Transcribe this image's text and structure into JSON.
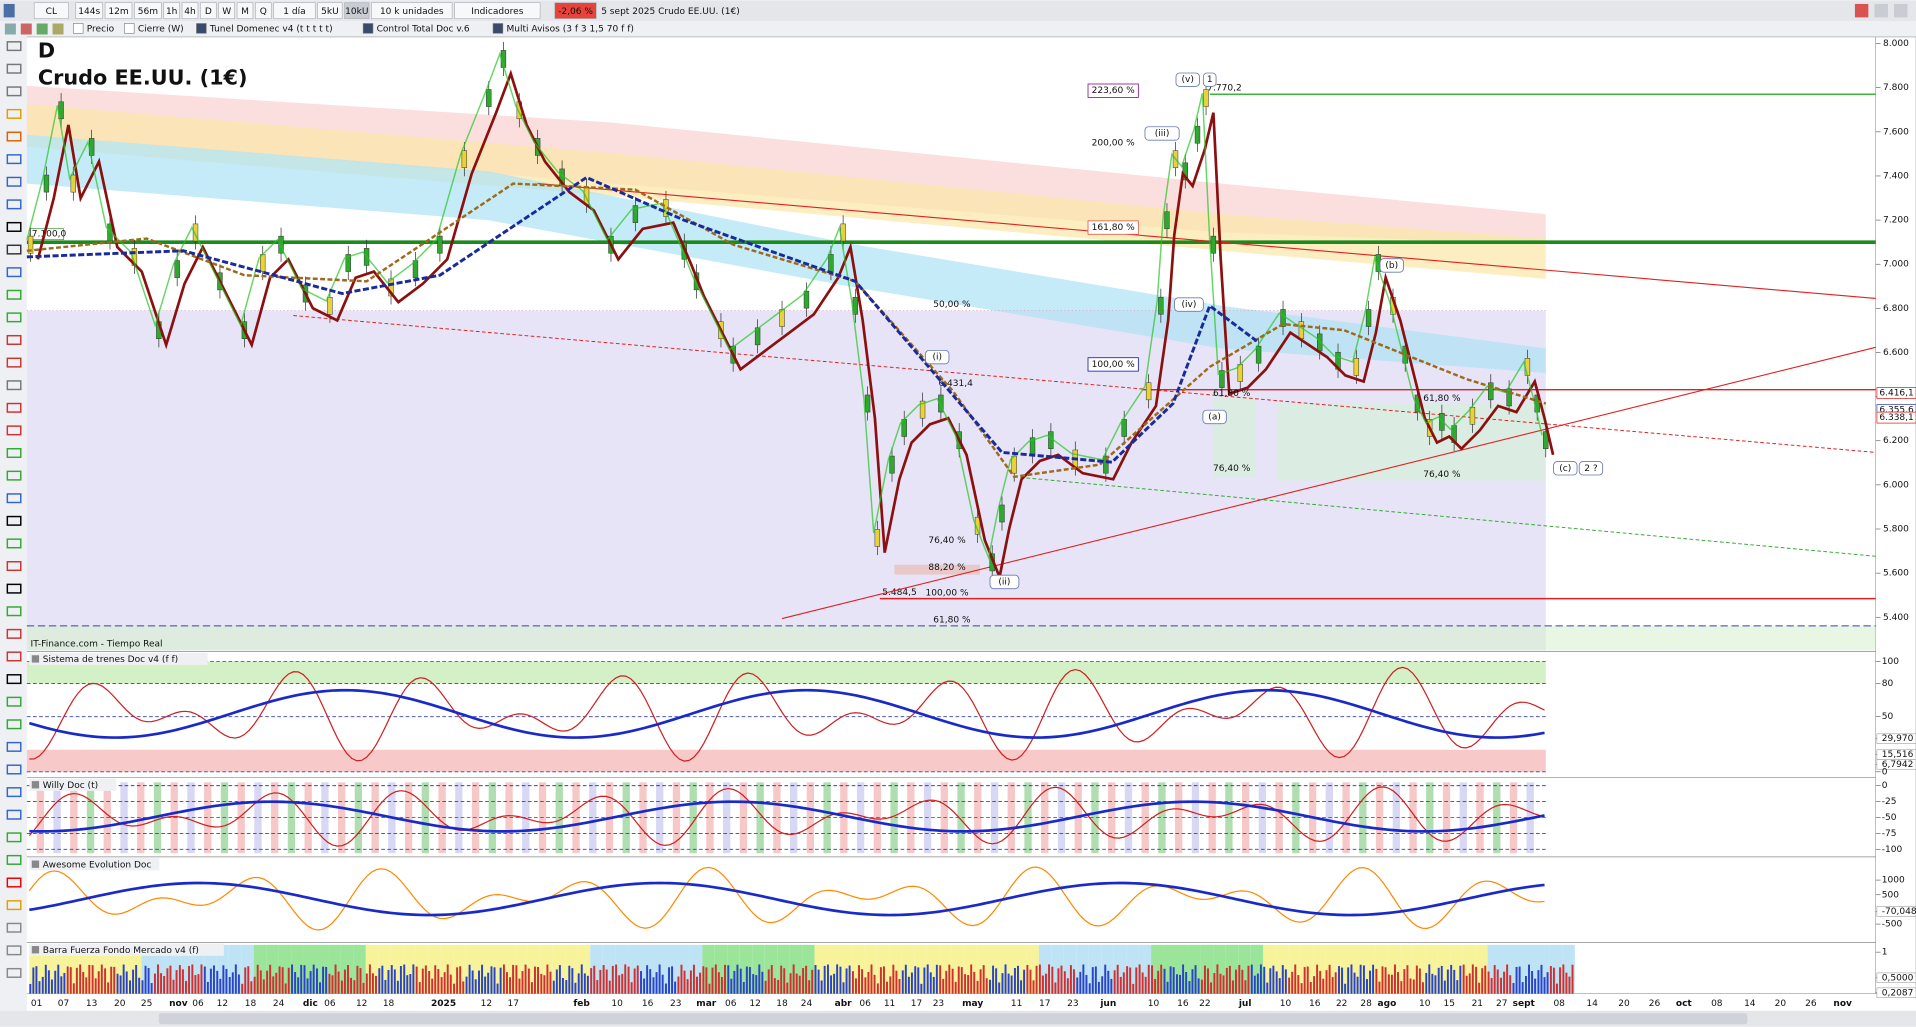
{
  "toolbar": {
    "symbol": "CL",
    "buttons": [
      "144s",
      "12m",
      "56m",
      "1h",
      "4h",
      "D",
      "W",
      "M",
      "Q"
    ],
    "period": "1 día",
    "units": [
      "5kU",
      "10kU"
    ],
    "unit_mode": "10 k unidades",
    "indicators": "Indicadores",
    "change": "-2,06 %",
    "info": "5 sept 2025 Crudo EE.UU. (1€)"
  },
  "indicator_tabs": [
    "Precio",
    "Cierre (W)",
    "Tunel Domenec v4 (t t t t t)",
    "Control Total Doc v.6",
    "Multi Avisos (3 f 3 1,5 70 f f)"
  ],
  "chart": {
    "timeframe": "D",
    "title": "Crudo EE.UU. (1€)",
    "source": "IT-Finance.com - Tiempo Real",
    "ylim": [
      5.25,
      8.03
    ],
    "yticks": [
      {
        "value": 8.0,
        "label": "8.000"
      },
      {
        "value": 7.8,
        "label": "7.800"
      },
      {
        "value": 7.6,
        "label": "7.600"
      },
      {
        "value": 7.4,
        "label": "7.400"
      },
      {
        "value": 7.2,
        "label": "7.200"
      },
      {
        "value": 7.0,
        "label": "7.000"
      },
      {
        "value": 6.8,
        "label": "6.800"
      },
      {
        "value": 6.6,
        "label": "6.600"
      },
      {
        "value": 6.4,
        "label": "6.400"
      },
      {
        "value": 6.2,
        "label": "6.200"
      },
      {
        "value": 6.0,
        "label": "6.000"
      },
      {
        "value": 5.8,
        "label": "5.800"
      },
      {
        "value": 5.6,
        "label": "5.600"
      },
      {
        "value": 5.4,
        "label": "5.400"
      }
    ],
    "levels": [
      {
        "value": 7.1,
        "label": "7.100,0"
      },
      {
        "value": 7.7702,
        "label": "7.770,2"
      },
      {
        "value": 6.4314,
        "label": "6.431,4"
      },
      {
        "value": 5.4845,
        "label": "5.484,5"
      }
    ],
    "price_tags": [
      {
        "value": 6.4161,
        "label": "6.416,1"
      },
      {
        "value": 6.3556,
        "label": "6.355,6"
      },
      {
        "value": 6.3381,
        "label": "6.338,1"
      }
    ],
    "annotations": [
      "223,60 %",
      "200,00 %",
      "161,80 %",
      "50,00 %",
      "100,00 %",
      "61,80 %",
      "61,80 %",
      "76,40 %",
      "76,40 %",
      "76,40 %",
      "88,20 %",
      "100,00 %",
      "61,80 %",
      "(v)",
      "1",
      "(iii)",
      "(iv)",
      "(i)",
      "(ii)",
      "(a)",
      "(b)",
      "(c)",
      "2 ?"
    ],
    "x_labels": [
      "01",
      "07",
      "13",
      "20",
      "25",
      "nov",
      "06",
      "12",
      "18",
      "24",
      "dic",
      "06",
      "12",
      "18",
      "2025",
      "12",
      "17",
      "feb",
      "10",
      "16",
      "23",
      "mar",
      "06",
      "12",
      "18",
      "24",
      "abr",
      "06",
      "11",
      "17",
      "23",
      "may",
      "11",
      "17",
      "23",
      "jun",
      "10",
      "16",
      "22",
      "jul",
      "10",
      "16",
      "22",
      "28",
      "ago",
      "10",
      "15",
      "21",
      "27",
      "sept",
      "08",
      "14",
      "20",
      "26",
      "oct",
      "08",
      "14",
      "20",
      "26",
      "nov"
    ]
  },
  "panels": [
    {
      "title": "Sistema de trenes Doc v4 (f f)",
      "ylim": [
        -4,
        109
      ],
      "ticks": [
        100,
        80,
        50,
        {
          "value": 29.97,
          "label": "29,970"
        },
        {
          "value": 15.516,
          "label": "15,516"
        },
        {
          "value": 6.7942,
          "label": "6,7942"
        },
        0
      ]
    },
    {
      "title": "Willy Doc (t)",
      "ylim": [
        -110,
        13
      ],
      "ticks": [
        0,
        -25,
        -50,
        -75,
        -100
      ]
    },
    {
      "title": "Awesome Evolution Doc",
      "ylim": [
        -1083,
        1792
      ],
      "ticks": [
        1000,
        500,
        {
          "value": -70.048,
          "label": "-70,048"
        },
        -500
      ]
    },
    {
      "title": "Barra Fuerza Fondo Mercado v4 (f)",
      "ylim": [
        0.19,
        1.19
      ],
      "ticks": [
        1,
        {
          "value": 0.5,
          "label": "0,5000"
        },
        {
          "value": 0.2087,
          "label": "0,2087"
        }
      ]
    }
  ]
}
